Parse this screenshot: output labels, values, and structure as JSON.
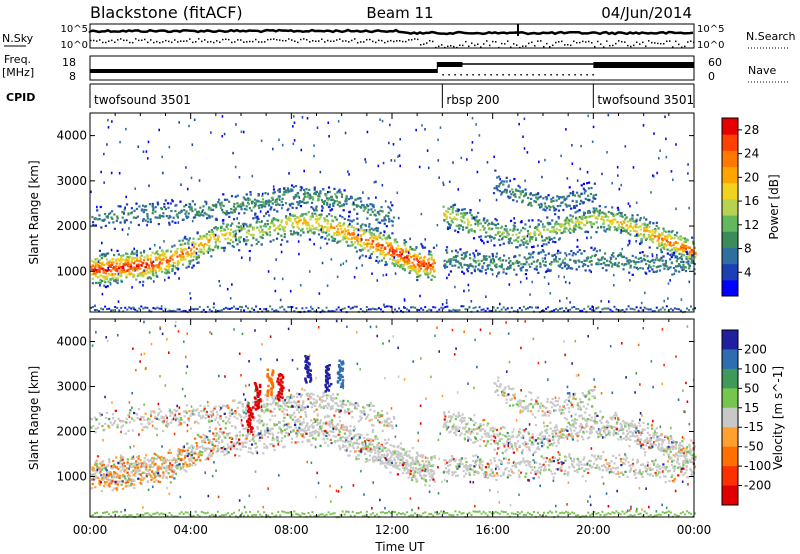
{
  "header": {
    "left": "Blackstone (fitACF)",
    "center": "Beam 11",
    "right": "04/Jun/2014"
  },
  "noise_panel": {
    "left_label": "N.Sky",
    "right_label": "N.Search",
    "ytick_top": "10^5",
    "ytick_bottom": "10^0",
    "right_ytick_top": "10^5",
    "right_ytick_bottom": "10^0"
  },
  "freq_panel": {
    "left_label_line1": "Freq.",
    "left_label_line2": "[MHz]",
    "left_ytick_top": "18",
    "left_ytick_bottom": "8",
    "right_label": "Nave",
    "right_ytick_top": "60",
    "right_ytick_bottom": "0"
  },
  "cpid_panel": {
    "label": "CPID",
    "segments": [
      {
        "name": "twofsound 3501",
        "start_h": 0,
        "end_h": 14
      },
      {
        "name": "rbsp 200",
        "start_h": 14,
        "end_h": 20
      },
      {
        "name": "twofsound 3501",
        "start_h": 20,
        "end_h": 24
      }
    ]
  },
  "colors": {
    "dark_blue": "#0000b0",
    "gray": "#c8c8c8",
    "axis": "#000000"
  },
  "chart_data": [
    {
      "type": "heatmap",
      "title": "",
      "xlabel": "",
      "ylabel": "Slant Range [km]",
      "x_ticks": [
        "00:00",
        "04:00",
        "08:00",
        "12:00",
        "16:00",
        "20:00",
        "00:00"
      ],
      "xlim_hours": [
        0,
        24
      ],
      "ylim": [
        100,
        4500
      ],
      "y_ticks": [
        1000,
        2000,
        3000,
        4000
      ],
      "colorbar": {
        "label": "Power [dB]",
        "ticks": [
          4,
          8,
          12,
          16,
          20,
          24,
          28
        ],
        "range": [
          0,
          30
        ],
        "colors": [
          "#0000ff",
          "#1d3fb4",
          "#2f6fa0",
          "#3c8c5a",
          "#63b85e",
          "#b7d24e",
          "#f2d21e",
          "#ffa500",
          "#ff7800",
          "#ff4000",
          "#e60000"
        ]
      },
      "scatter_bands": [
        {
          "name": "main_near",
          "points": [
            [
              0,
              1050,
              0.9
            ],
            [
              2,
              1150,
              0.9
            ],
            [
              3,
              1250,
              0.8
            ],
            [
              4,
              1500,
              0.7
            ],
            [
              5,
              1800,
              0.6
            ],
            [
              6,
              1850,
              0.5
            ],
            [
              7,
              1950,
              0.5
            ],
            [
              8,
              2100,
              0.6
            ],
            [
              9,
              2100,
              0.6
            ],
            [
              10,
              1900,
              0.7
            ],
            [
              11,
              1700,
              0.8
            ],
            [
              12,
              1450,
              0.9
            ],
            [
              13,
              1200,
              0.9
            ],
            [
              13.6,
              1150,
              0.8
            ]
          ]
        },
        {
          "name": "upper_arc",
          "points": [
            [
              0,
              2200,
              0.25
            ],
            [
              2,
              2300,
              0.3
            ],
            [
              4,
              2350,
              0.35
            ],
            [
              6,
              2500,
              0.4
            ],
            [
              8,
              2700,
              0.45
            ],
            [
              10,
              2600,
              0.4
            ],
            [
              12,
              2200,
              0.35
            ]
          ]
        },
        {
          "name": "evening_band",
          "points": [
            [
              14,
              2300,
              0.6
            ],
            [
              15,
              2100,
              0.5
            ],
            [
              16,
              1900,
              0.4
            ],
            [
              17,
              1800,
              0.45
            ],
            [
              18,
              1900,
              0.5
            ],
            [
              19,
              2050,
              0.5
            ],
            [
              20,
              2200,
              0.55
            ],
            [
              21,
              2100,
              0.6
            ],
            [
              22,
              1900,
              0.65
            ],
            [
              23,
              1650,
              0.75
            ],
            [
              24,
              1450,
              0.8
            ]
          ]
        },
        {
          "name": "evening_low",
          "points": [
            [
              14,
              1300,
              0.4
            ],
            [
              16,
              1200,
              0.4
            ],
            [
              18,
              1250,
              0.35
            ],
            [
              20,
              1300,
              0.4
            ],
            [
              22,
              1200,
              0.35
            ],
            [
              24,
              1150,
              0.35
            ]
          ]
        },
        {
          "name": "streaks",
          "points": [
            [
              16,
              3000,
              0.3
            ],
            [
              17,
              2700,
              0.35
            ],
            [
              18,
              2500,
              0.3
            ],
            [
              19,
              2600,
              0.3
            ],
            [
              20,
              2800,
              0.3
            ]
          ]
        }
      ]
    },
    {
      "type": "heatmap",
      "title": "",
      "xlabel": "Time UT",
      "ylabel": "Slant Range [km]",
      "x_ticks": [
        "00:00",
        "04:00",
        "08:00",
        "12:00",
        "16:00",
        "20:00",
        "00:00"
      ],
      "xlim_hours": [
        0,
        24
      ],
      "ylim": [
        100,
        4500
      ],
      "y_ticks": [
        1000,
        2000,
        3000,
        4000
      ],
      "colorbar": {
        "label": "Velocity [m s^-1]",
        "ticks": [
          200,
          100,
          50,
          15,
          -15,
          -50,
          -100,
          -200
        ],
        "colors": [
          "#1f1fa0",
          "#2e6eb0",
          "#3f9a5a",
          "#74c64c",
          "#c8c8c8",
          "#ffa030",
          "#ff7000",
          "#ff3000",
          "#e00000"
        ]
      },
      "notes": "gray ground scatter broad band following the power band; orange negative velocities early; red/blue streaks near 06:00-09:00 at 2500-3800 km"
    }
  ]
}
